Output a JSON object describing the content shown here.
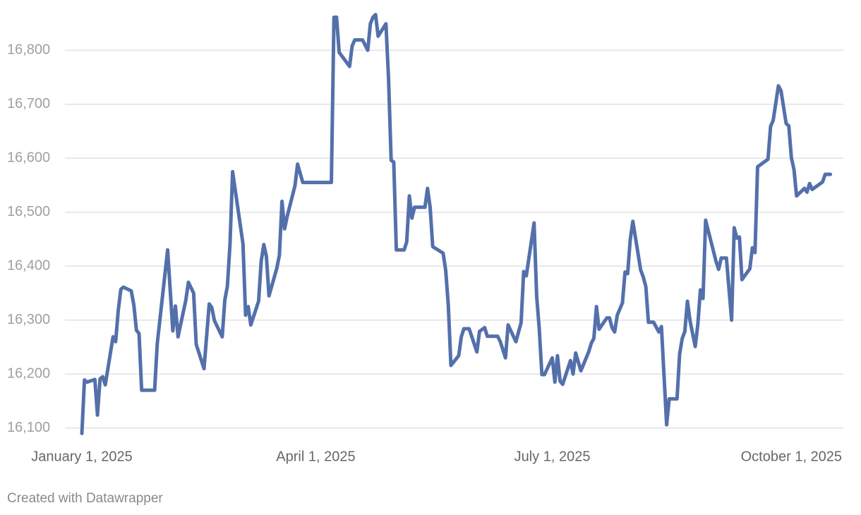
{
  "chart_data": {
    "type": "line",
    "credit": "Created with Datawrapper",
    "x": [
      "2025-01-01",
      "2025-01-02",
      "2025-01-03",
      "2025-01-06",
      "2025-01-07",
      "2025-01-08",
      "2025-01-09",
      "2025-01-10",
      "2025-01-13",
      "2025-01-14",
      "2025-01-15",
      "2025-01-16",
      "2025-01-17",
      "2025-01-20",
      "2025-01-21",
      "2025-01-22",
      "2025-01-23",
      "2025-01-24",
      "2025-01-29",
      "2025-01-30",
      "2025-02-03",
      "2025-02-05",
      "2025-02-06",
      "2025-02-07",
      "2025-02-10",
      "2025-02-11",
      "2025-02-13",
      "2025-02-14",
      "2025-02-17",
      "2025-02-19",
      "2025-02-20",
      "2025-02-21",
      "2025-02-24",
      "2025-02-25",
      "2025-02-26",
      "2025-02-27",
      "2025-02-28",
      "2025-03-04",
      "2025-03-05",
      "2025-03-06",
      "2025-03-07",
      "2025-03-10",
      "2025-03-11",
      "2025-03-12",
      "2025-03-13",
      "2025-03-14",
      "2025-03-17",
      "2025-03-18",
      "2025-03-19",
      "2025-03-20",
      "2025-03-21",
      "2025-03-24",
      "2025-03-25",
      "2025-03-27",
      "2025-04-07",
      "2025-04-08",
      "2025-04-09",
      "2025-04-10",
      "2025-04-14",
      "2025-04-15",
      "2025-04-16",
      "2025-04-19",
      "2025-04-21",
      "2025-04-22",
      "2025-04-23",
      "2025-04-24",
      "2025-04-25",
      "2025-04-28",
      "2025-04-29",
      "2025-04-30",
      "2025-05-01",
      "2025-05-02",
      "2025-05-05",
      "2025-05-06",
      "2025-05-07",
      "2025-05-08",
      "2025-05-09",
      "2025-05-13",
      "2025-05-14",
      "2025-05-15",
      "2025-05-16",
      "2025-05-20",
      "2025-05-21",
      "2025-05-22",
      "2025-05-23",
      "2025-05-26",
      "2025-05-27",
      "2025-05-28",
      "2025-05-30",
      "2025-06-02",
      "2025-06-03",
      "2025-06-05",
      "2025-06-06",
      "2025-06-10",
      "2025-06-11",
      "2025-06-13",
      "2025-06-14",
      "2025-06-17",
      "2025-06-19",
      "2025-06-20",
      "2025-06-21",
      "2025-06-24",
      "2025-06-25",
      "2025-06-26",
      "2025-06-27",
      "2025-06-28",
      "2025-07-01",
      "2025-07-02",
      "2025-07-03",
      "2025-07-04",
      "2025-07-05",
      "2025-07-08",
      "2025-07-09",
      "2025-07-10",
      "2025-07-12",
      "2025-07-15",
      "2025-07-16",
      "2025-07-17",
      "2025-07-18",
      "2025-07-19",
      "2025-07-22",
      "2025-07-23",
      "2025-07-24",
      "2025-07-25",
      "2025-07-26",
      "2025-07-28",
      "2025-07-29",
      "2025-07-30",
      "2025-07-31",
      "2025-08-01",
      "2025-08-04",
      "2025-08-05",
      "2025-08-06",
      "2025-08-07",
      "2025-08-09",
      "2025-08-11",
      "2025-08-12",
      "2025-08-14",
      "2025-08-15",
      "2025-08-18",
      "2025-08-19",
      "2025-08-20",
      "2025-08-21",
      "2025-08-22",
      "2025-08-23",
      "2025-08-25",
      "2025-08-26",
      "2025-08-27",
      "2025-08-28",
      "2025-08-29",
      "2025-09-02",
      "2025-09-03",
      "2025-09-04",
      "2025-09-06",
      "2025-09-08",
      "2025-09-09",
      "2025-09-10",
      "2025-09-11",
      "2025-09-12",
      "2025-09-15",
      "2025-09-16",
      "2025-09-17",
      "2025-09-18",
      "2025-09-22",
      "2025-09-23",
      "2025-09-24",
      "2025-09-26",
      "2025-09-27",
      "2025-09-29",
      "2025-09-30",
      "2025-10-01",
      "2025-10-02",
      "2025-10-03",
      "2025-10-06",
      "2025-10-07",
      "2025-10-08",
      "2025-10-09",
      "2025-10-13",
      "2025-10-14",
      "2025-10-16"
    ],
    "values": [
      16090,
      16189,
      16185,
      16190,
      16124,
      16191,
      16195,
      16180,
      16269,
      16260,
      16318,
      16357,
      16361,
      16354,
      16328,
      16281,
      16275,
      16170,
      16170,
      16256,
      16430,
      16280,
      16326,
      16269,
      16337,
      16370,
      16350,
      16255,
      16210,
      16330,
      16323,
      16299,
      16269,
      16337,
      16363,
      16441,
      16575,
      16441,
      16309,
      16325,
      16291,
      16335,
      16409,
      16440,
      16418,
      16345,
      16396,
      16420,
      16520,
      16469,
      16492,
      16549,
      16589,
      16555,
      16555,
      16861,
      16861,
      16796,
      16770,
      16808,
      16819,
      16819,
      16800,
      16849,
      16861,
      16866,
      16826,
      16849,
      16748,
      16596,
      16593,
      16430,
      16430,
      16445,
      16530,
      16489,
      16509,
      16509,
      16544,
      16509,
      16436,
      16424,
      16392,
      16327,
      16216,
      16234,
      16269,
      16284,
      16284,
      16241,
      16279,
      16286,
      16270,
      16270,
      16260,
      16230,
      16291,
      16260,
      16295,
      16390,
      16382,
      16480,
      16344,
      16283,
      16199,
      16199,
      16230,
      16185,
      16234,
      16187,
      16181,
      16225,
      16200,
      16239,
      16206,
      16241,
      16257,
      16266,
      16325,
      16283,
      16304,
      16304,
      16286,
      16278,
      16309,
      16332,
      16389,
      16386,
      16449,
      16483,
      16393,
      16380,
      16362,
      16296,
      16296,
      16278,
      16288,
      16106,
      16154,
      16154,
      16237,
      16266,
      16279,
      16335,
      16299,
      16251,
      16292,
      16356,
      16340,
      16485,
      16409,
      16394,
      16415,
      16415,
      16300,
      16471,
      16452,
      16454,
      16375,
      16395,
      16434,
      16425,
      16584,
      16598,
      16659,
      16670,
      16734,
      16725,
      16664,
      16660,
      16601,
      16579,
      16530,
      16544,
      16537,
      16553,
      16542,
      16556,
      16570,
      16570
    ],
    "color": "#5470ab",
    "xlim": [
      "2025-01-01",
      "2025-10-21"
    ],
    "xticks": [
      {
        "value": "2025-01-01",
        "label": "January 1, 2025"
      },
      {
        "value": "2025-04-01",
        "label": "April 1, 2025"
      },
      {
        "value": "2025-07-01",
        "label": "July 1, 2025"
      },
      {
        "value": "2025-10-01",
        "label": "October 1, 2025"
      }
    ],
    "ylim": [
      16080,
      16880
    ],
    "yticks": [
      {
        "value": 16100,
        "label": "16,100"
      },
      {
        "value": 16200,
        "label": "16,200"
      },
      {
        "value": 16300,
        "label": "16,300"
      },
      {
        "value": 16400,
        "label": "16,400"
      },
      {
        "value": 16500,
        "label": "16,500"
      },
      {
        "value": 16600,
        "label": "16,600"
      },
      {
        "value": 16700,
        "label": "16,700"
      },
      {
        "value": 16800,
        "label": "16,800"
      }
    ],
    "grid": true
  }
}
